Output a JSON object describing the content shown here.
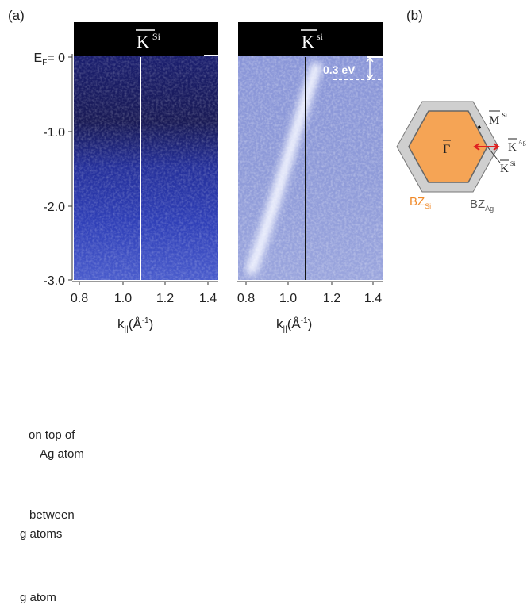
{
  "panel_a": {
    "label": "(a)",
    "left_header": {
      "letter": "K",
      "sup": "Si"
    },
    "right_header": {
      "letter": "K",
      "sup": "si"
    },
    "y_ticks": [
      {
        "main": "E",
        "sub": "F",
        "rest": "= 0"
      },
      "-1.0",
      "-2.0",
      "-3.0"
    ],
    "x_ticks": [
      "0.8",
      "1.0",
      "1.2",
      "1.4"
    ],
    "x_label": {
      "k": "k",
      "sub": "||",
      "open": "(Å",
      "sup": "-1",
      "close": ")"
    },
    "gap_label": "0.3 eV"
  },
  "panel_b": {
    "label": "(b)",
    "gamma": "Γ",
    "m_si": {
      "letter": "M",
      "sup": "Si"
    },
    "k_ag": {
      "letter": "K",
      "sup": "Ag"
    },
    "k_si": {
      "letter": "K",
      "sup": "Si"
    },
    "bz_si": {
      "main": "BZ",
      "sub": "Si"
    },
    "bz_ag": {
      "main": "BZ",
      "sub": "Ag"
    }
  },
  "captions": [
    [
      "on top of",
      "Ag atom"
    ],
    [
      "between",
      "g atoms"
    ],
    [
      "g atom"
    ]
  ]
}
